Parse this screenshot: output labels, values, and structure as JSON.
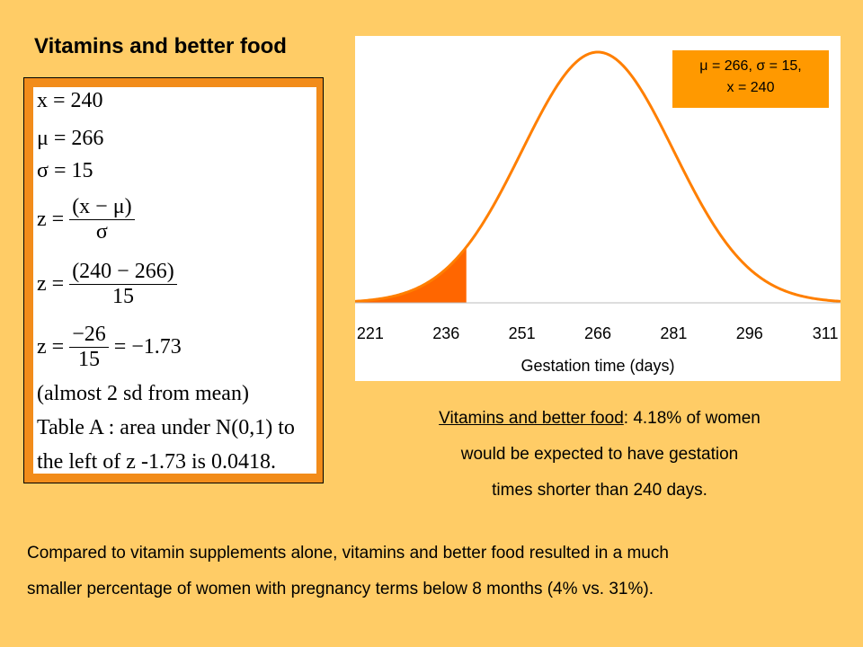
{
  "slide": {
    "title": "Vitamins and better food",
    "caption_lead": "Vitamins and better food",
    "caption_line1_rest": ": 4.18% of women",
    "caption_line2": "would be expected to have gestation",
    "caption_line3": "times shorter than 240 days.",
    "summary_line1": "Compared to vitamin supplements alone, vitamins and better food resulted in a much",
    "summary_line2": "smaller percentage of women with pregnancy terms below 8 months (4% vs. 31%)."
  },
  "formulas": {
    "x_eq": "x = 240",
    "mu_eq": "μ = 266",
    "sigma_eq": "σ = 15",
    "z_lhs": "z =",
    "z_num": "(x − μ)",
    "z_den": "σ",
    "z2_num": "(240 − 266)",
    "z2_den": "15",
    "z3_num": "−26",
    "z3_den": "15",
    "z3_result": "= −1.73",
    "note1": "(almost 2 sd from mean)",
    "note2": "Table A : area under N(0,1) to",
    "note3": "the left of z -1.73 is 0.0418."
  },
  "params_box": {
    "line1": "μ = 266,  σ = 15,",
    "line2": "x = 240"
  },
  "chart_data": {
    "type": "area",
    "distribution": "normal",
    "mean": 266,
    "sd": 15,
    "shaded_upper_bound": 240,
    "shaded_area": 0.0418,
    "xlim": [
      218,
      314
    ],
    "x_ticks": [
      221,
      236,
      251,
      266,
      281,
      296,
      311
    ],
    "xlabel": "Gestation time (days)",
    "curve_color": "#FF7F00",
    "shade_color": "#FF6600"
  }
}
